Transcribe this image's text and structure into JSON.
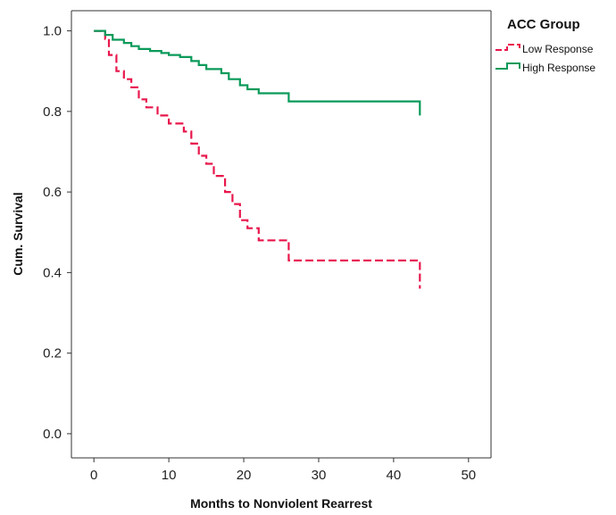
{
  "chart_data": {
    "type": "line",
    "subtype": "kaplan-meier step",
    "title": "",
    "xlabel": "Months to Nonviolent Rearrest",
    "ylabel": "Cum. Survival",
    "xlim": [
      -3,
      53
    ],
    "ylim": [
      -0.06,
      1.05
    ],
    "xticks": [
      "0",
      "10",
      "20",
      "30",
      "40",
      "50"
    ],
    "yticks": [
      "0.0",
      "0.2",
      "0.4",
      "0.6",
      "0.8",
      "1.0"
    ],
    "grid": false,
    "legend": {
      "title": "ACC Group",
      "placement": "top-right"
    },
    "series": [
      {
        "name": "Low Response",
        "color": "#e8174c",
        "dash": "dashed",
        "x": [
          0,
          1.5,
          2,
          3,
          4,
          5,
          6,
          7,
          8.5,
          10,
          12,
          13,
          14,
          15,
          16,
          17.5,
          18.5,
          19.5,
          20.5,
          22,
          26,
          43.5,
          43.5
        ],
        "y": [
          1.0,
          0.98,
          0.94,
          0.9,
          0.88,
          0.86,
          0.83,
          0.81,
          0.79,
          0.77,
          0.75,
          0.72,
          0.69,
          0.67,
          0.64,
          0.6,
          0.57,
          0.53,
          0.51,
          0.48,
          0.43,
          0.43,
          0.36
        ]
      },
      {
        "name": "High Response",
        "color": "#0a9a5a",
        "dash": "solid",
        "x": [
          0,
          1.5,
          2.5,
          4,
          5,
          6,
          7.5,
          9,
          10,
          11.5,
          13,
          14,
          15,
          17,
          18,
          19.5,
          20.5,
          22,
          26,
          43.5,
          43.5
        ],
        "y": [
          1.0,
          0.99,
          0.978,
          0.97,
          0.962,
          0.955,
          0.95,
          0.945,
          0.94,
          0.935,
          0.925,
          0.915,
          0.905,
          0.895,
          0.88,
          0.865,
          0.855,
          0.845,
          0.825,
          0.825,
          0.79
        ]
      }
    ]
  }
}
